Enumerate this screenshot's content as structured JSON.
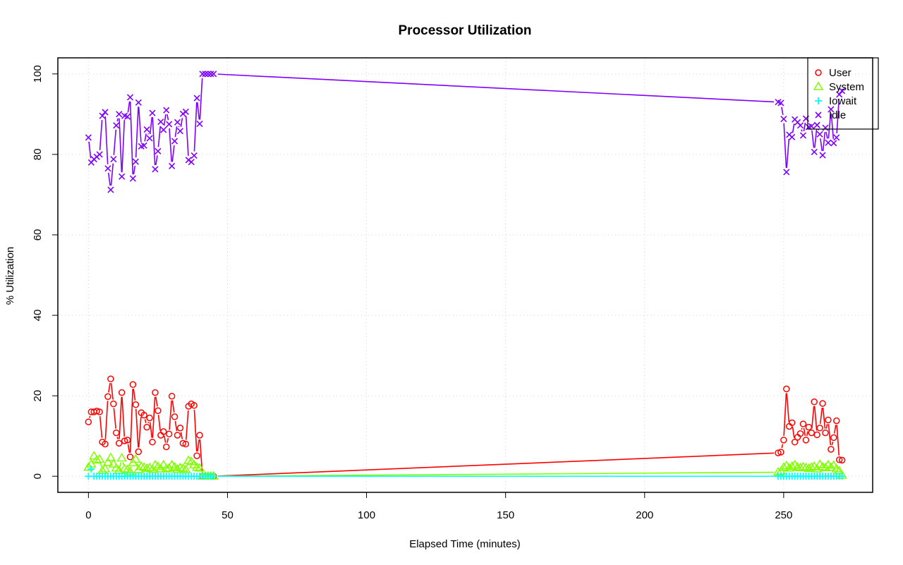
{
  "chart_data": {
    "type": "line",
    "title": "Processor Utilization",
    "xlabel": "Elapsed Time (minutes)",
    "ylabel": "% Utilization",
    "xlim": [
      -11,
      282
    ],
    "ylim": [
      -4,
      104
    ],
    "xticks": [
      0,
      50,
      100,
      150,
      200,
      250
    ],
    "yticks": [
      0,
      20,
      40,
      60,
      80,
      100
    ],
    "grid": true,
    "legend_position": "top-right",
    "x": [
      0,
      1,
      2,
      3,
      4,
      5,
      6,
      7,
      8,
      9,
      10,
      11,
      12,
      13,
      14,
      15,
      16,
      17,
      18,
      19,
      20,
      21,
      22,
      23,
      24,
      25,
      26,
      27,
      28,
      29,
      30,
      31,
      32,
      33,
      34,
      35,
      36,
      37,
      38,
      39,
      40,
      41,
      42,
      43,
      44,
      45,
      248,
      249,
      250,
      251,
      252,
      253,
      254,
      255,
      256,
      257,
      258,
      259,
      260,
      261,
      262,
      263,
      264,
      265,
      266,
      267,
      268,
      269,
      270,
      271
    ],
    "series": [
      {
        "name": "User",
        "color": "#ff0000",
        "marker": "circle",
        "values": [
          13.5,
          16,
          16,
          16.2,
          16,
          8.5,
          8,
          19.8,
          24.2,
          18,
          10.8,
          8.2,
          20.8,
          8.8,
          9,
          4.8,
          22.8,
          17.8,
          6.1,
          15.8,
          15.2,
          12.2,
          14.5,
          8.5,
          20.8,
          16.3,
          10.2,
          11.1,
          7.3,
          10.5,
          19.9,
          14.8,
          10.2,
          12,
          8.2,
          8,
          17.4,
          18,
          17.6,
          5.1,
          10.2,
          0,
          0,
          0,
          0,
          0,
          5.8,
          6,
          9,
          21.7,
          12.4,
          13.3,
          8.5,
          9.7,
          10.6,
          13,
          9,
          12.2,
          10.8,
          18.5,
          10.3,
          12,
          18.1,
          10.8,
          14,
          6.7,
          9.6,
          13.8,
          4.1,
          4
        ]
      },
      {
        "name": "System",
        "color": "#80ff00",
        "marker": "triangle",
        "values": [
          2.2,
          3,
          5,
          4,
          4.2,
          1.4,
          1.8,
          3.4,
          4.6,
          3,
          2,
          1.4,
          4.5,
          1.8,
          1.6,
          1.1,
          3.3,
          4.2,
          1.6,
          2.4,
          2.2,
          1.9,
          2.1,
          1.7,
          2.8,
          2.4,
          1.8,
          2.8,
          1.8,
          2,
          2.8,
          2.3,
          1.7,
          2.1,
          1.9,
          1.6,
          3.9,
          3.6,
          2.8,
          2.2,
          2,
          0,
          0,
          0,
          0,
          0,
          1,
          1.2,
          2.2,
          2.6,
          2,
          2.4,
          2.8,
          2.2,
          2.1,
          2.3,
          2.1,
          1.9,
          2.2,
          2.4,
          1.8,
          2.9,
          2.3,
          2.1,
          2.8,
          2.2,
          2.7,
          1.8,
          1.3,
          0.2
        ]
      },
      {
        "name": "Iowait",
        "color": "#00ffff",
        "marker": "plus",
        "values": [
          0,
          1.8,
          0,
          0,
          0,
          0,
          0,
          0,
          0,
          0,
          0,
          0,
          0,
          0,
          0,
          0,
          0,
          0,
          0,
          0,
          0,
          0,
          0,
          0,
          0,
          0,
          0,
          0,
          0,
          0,
          0,
          0,
          0,
          0,
          0,
          0,
          0,
          0,
          0,
          0,
          0,
          0,
          0,
          0,
          0,
          0,
          0,
          0,
          0,
          0,
          0,
          0,
          0,
          0,
          0,
          0,
          0,
          0,
          0,
          0,
          0,
          0,
          0,
          0,
          0,
          0,
          0,
          0,
          0,
          0
        ]
      },
      {
        "name": "Idle",
        "color": "#8000ff",
        "marker": "x",
        "values": [
          84.2,
          78,
          78.8,
          79.4,
          80,
          89.6,
          90.5,
          76.5,
          71.2,
          78.8,
          87.2,
          90,
          74.5,
          89.6,
          89.4,
          94.2,
          74,
          78.2,
          92.9,
          82,
          82.2,
          86.2,
          84,
          90.3,
          76.3,
          80.8,
          88.1,
          86.1,
          91,
          87.5,
          77.1,
          83.3,
          88,
          85.8,
          90.1,
          90.6,
          78.6,
          78.1,
          79.7,
          94,
          87.6,
          100,
          100,
          100,
          100,
          100,
          93,
          92.8,
          88.8,
          75.6,
          84.9,
          84.3,
          88.7,
          88,
          87.2,
          84.7,
          88.9,
          86.8,
          87,
          80.6,
          87.3,
          85,
          79.8,
          86.6,
          82.9,
          91.2,
          82.8,
          84.2,
          94.9,
          95.8
        ]
      }
    ]
  }
}
